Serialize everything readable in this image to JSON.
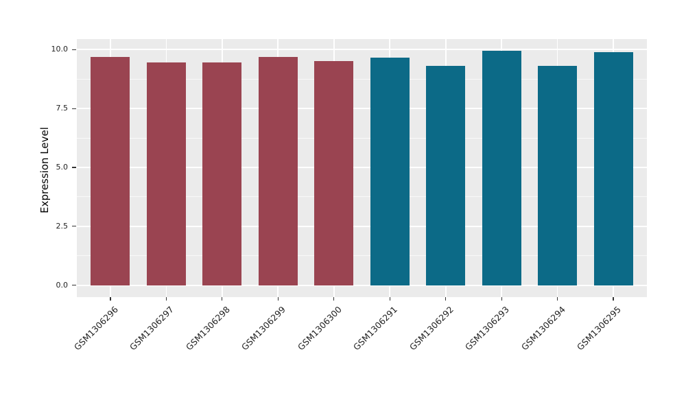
{
  "chart_data": {
    "type": "bar",
    "title": "",
    "xlabel": "",
    "ylabel": "Expression Level",
    "categories": [
      "GSM1306296",
      "GSM1306297",
      "GSM1306298",
      "GSM1306299",
      "GSM1306300",
      "GSM1306291",
      "GSM1306292",
      "GSM1306293",
      "GSM1306294",
      "GSM1306295"
    ],
    "values": [
      9.7,
      9.45,
      9.45,
      9.7,
      9.5,
      9.65,
      9.3,
      9.95,
      9.3,
      9.9
    ],
    "bar_colors": [
      "#9A4451",
      "#9A4451",
      "#9A4451",
      "#9A4451",
      "#9A4451",
      "#0C6A87",
      "#0C6A87",
      "#0C6A87",
      "#0C6A87",
      "#0C6A87"
    ],
    "ylim": [
      0,
      10
    ],
    "ytick_labels": [
      "0.0",
      "2.5",
      "5.0",
      "7.5",
      "10.0"
    ],
    "ytick_values": [
      0,
      2.5,
      5,
      7.5,
      10
    ],
    "minor_ytick_values": [
      1.25,
      3.75,
      6.25,
      8.75
    ],
    "grid": "on",
    "legend_position": "none",
    "x_tick_label_rotation_deg": -45,
    "colors": {
      "panel_background": "#EBEBEB",
      "gridline": "#FFFFFF",
      "tick_mark": "#333333",
      "tick_label": "#1f1f1f",
      "axis_title": "#000000",
      "group_left_bar": "#9A4451",
      "group_right_bar": "#0C6A87"
    }
  }
}
